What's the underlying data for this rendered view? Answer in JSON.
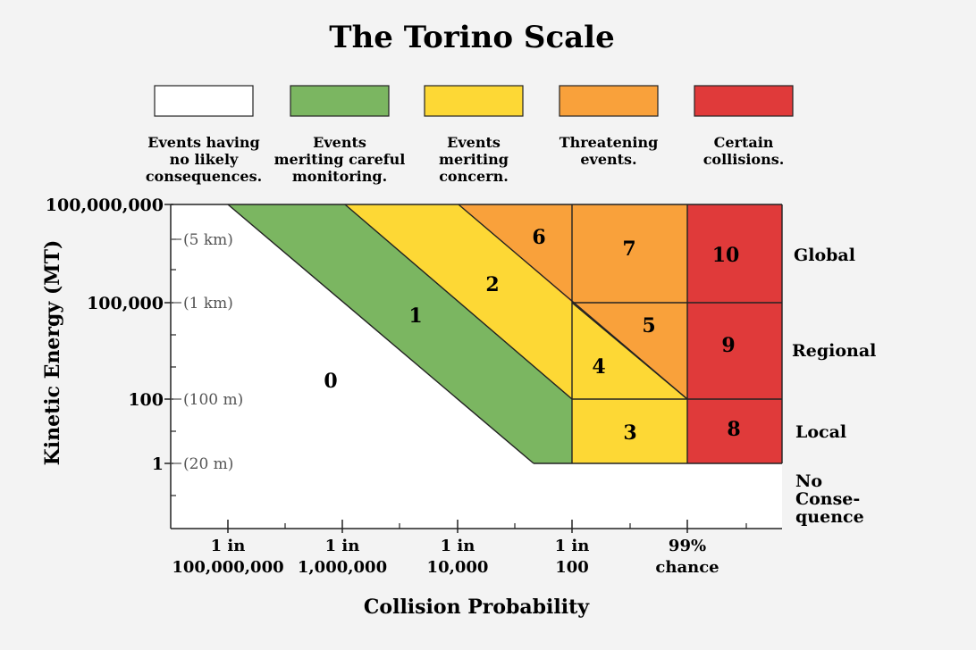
{
  "chart_data": {
    "type": "diagram",
    "title": "The Torino Scale",
    "xlabel": "Collision Probability",
    "ylabel": "Kinetic Energy (MT)",
    "legend": [
      {
        "color": "#ffffff",
        "lines": [
          "Events having",
          "no likely",
          "consequences."
        ]
      },
      {
        "color": "#7bb661",
        "lines": [
          "Events",
          "meriting careful",
          "monitoring."
        ]
      },
      {
        "color": "#fdd835",
        "lines": [
          "Events",
          "meriting",
          "concern."
        ]
      },
      {
        "color": "#f9a13b",
        "lines": [
          "Threatening",
          "events."
        ]
      },
      {
        "color": "#e03a3a",
        "lines": [
          "Certain",
          "collisions."
        ]
      }
    ],
    "y_ticks": [
      {
        "value": "100,000,000",
        "size": "(5 km)",
        "sizeAt": "100,000,000"
      },
      {
        "value": "100,000",
        "size": "(1 km)"
      },
      {
        "value": "100",
        "size": "(100 m)"
      },
      {
        "value": "1",
        "size": "(20 m)"
      }
    ],
    "x_ticks": [
      {
        "lines": [
          "1 in",
          "100,000,000"
        ]
      },
      {
        "lines": [
          "1 in",
          "1,000,000"
        ]
      },
      {
        "lines": [
          "1 in",
          "10,000"
        ]
      },
      {
        "lines": [
          "1 in",
          "100"
        ]
      },
      {
        "lines": [
          "99%",
          "chance"
        ]
      }
    ],
    "zones": [
      {
        "level": "0",
        "category": "Events having no likely consequences."
      },
      {
        "level": "1",
        "category": "Events meriting careful monitoring."
      },
      {
        "level": "2",
        "category": "Events meriting concern."
      },
      {
        "level": "3",
        "category": "Events meriting concern."
      },
      {
        "level": "4",
        "category": "Events meriting concern."
      },
      {
        "level": "5",
        "category": "Threatening events."
      },
      {
        "level": "6",
        "category": "Threatening events."
      },
      {
        "level": "7",
        "category": "Threatening events."
      },
      {
        "level": "8",
        "category": "Certain collisions."
      },
      {
        "level": "9",
        "category": "Certain collisions."
      },
      {
        "level": "10",
        "category": "Certain collisions."
      }
    ],
    "regions": [
      {
        "lines": [
          "Global"
        ]
      },
      {
        "lines": [
          "Regional"
        ]
      },
      {
        "lines": [
          "Local"
        ]
      },
      {
        "lines": [
          "No",
          "Conse-",
          "quence"
        ]
      }
    ]
  }
}
